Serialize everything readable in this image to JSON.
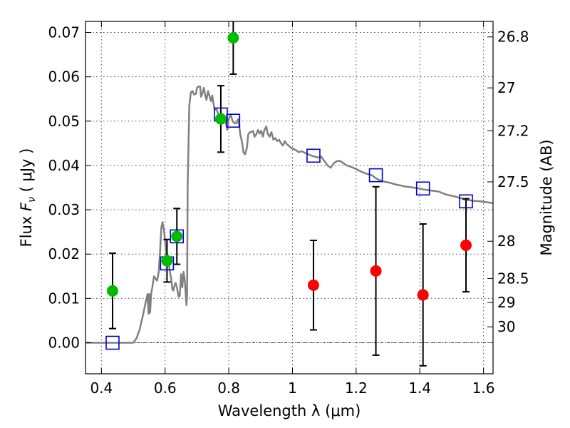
{
  "chart_data": {
    "type": "scatter",
    "xlabel": "Wavelength  λ (μm)",
    "ylabel": "Flux  F_ν  ( μJy )",
    "ylabel_parts": {
      "pre": "Flux  ",
      "var": "F",
      "sub": "ν",
      "post": "  ( μJy )"
    },
    "y2label": "Magnitude (AB)",
    "xlim": [
      0.35,
      1.63
    ],
    "ylim": [
      -0.007,
      0.0725
    ],
    "grid": true,
    "x_ticks": [
      {
        "value": 0.4,
        "label": "0.4"
      },
      {
        "value": 0.6,
        "label": "0.6"
      },
      {
        "value": 0.8,
        "label": "0.8"
      },
      {
        "value": 1.0,
        "label": "1"
      },
      {
        "value": 1.2,
        "label": "1.2"
      },
      {
        "value": 1.4,
        "label": "1.4"
      },
      {
        "value": 1.6,
        "label": "1.6"
      }
    ],
    "y_ticks": [
      {
        "value": 0.0,
        "label": "0.00"
      },
      {
        "value": 0.01,
        "label": "0.01"
      },
      {
        "value": 0.02,
        "label": "0.02"
      },
      {
        "value": 0.03,
        "label": "0.03"
      },
      {
        "value": 0.04,
        "label": "0.04"
      },
      {
        "value": 0.05,
        "label": "0.05"
      },
      {
        "value": 0.06,
        "label": "0.06"
      },
      {
        "value": 0.07,
        "label": "0.07"
      }
    ],
    "y2_ticks": [
      {
        "flux": 0.069,
        "label": "26.8"
      },
      {
        "flux": 0.0575,
        "label": "27"
      },
      {
        "flux": 0.0478,
        "label": "27.2"
      },
      {
        "flux": 0.0363,
        "label": "27.5"
      },
      {
        "flux": 0.0229,
        "label": "28"
      },
      {
        "flux": 0.0145,
        "label": "28.5"
      },
      {
        "flux": 0.0091,
        "label": "29"
      },
      {
        "flux": 0.0036,
        "label": "30"
      }
    ],
    "series": [
      {
        "kind": "model_spectrum",
        "color": "#808080",
        "points": [
          [
            0.35,
            0.0
          ],
          [
            0.5,
            0.0
          ],
          [
            0.51,
            0.001
          ],
          [
            0.52,
            0.003
          ],
          [
            0.53,
            0.006
          ],
          [
            0.54,
            0.0095
          ],
          [
            0.545,
            0.011
          ],
          [
            0.548,
            0.0065
          ],
          [
            0.55,
            0.011
          ],
          [
            0.553,
            0.0068
          ],
          [
            0.556,
            0.011
          ],
          [
            0.56,
            0.0125
          ],
          [
            0.565,
            0.015
          ],
          [
            0.57,
            0.0145
          ],
          [
            0.575,
            0.014
          ],
          [
            0.58,
            0.016
          ],
          [
            0.584,
            0.0205
          ],
          [
            0.588,
            0.026
          ],
          [
            0.592,
            0.0272
          ],
          [
            0.597,
            0.025
          ],
          [
            0.6,
            0.023
          ],
          [
            0.605,
            0.019
          ],
          [
            0.61,
            0.0195
          ],
          [
            0.614,
            0.0165
          ],
          [
            0.619,
            0.0145
          ],
          [
            0.623,
            0.012
          ],
          [
            0.626,
            0.0118
          ],
          [
            0.629,
            0.0128
          ],
          [
            0.633,
            0.0135
          ],
          [
            0.637,
            0.0125
          ],
          [
            0.642,
            0.0105
          ],
          [
            0.646,
            0.0105
          ],
          [
            0.65,
            0.0155
          ],
          [
            0.654,
            0.0125
          ],
          [
            0.658,
            0.016
          ],
          [
            0.662,
            0.014
          ],
          [
            0.667,
            0.0085
          ],
          [
            0.669,
            0.011
          ],
          [
            0.671,
            0.0355
          ],
          [
            0.676,
            0.0535
          ],
          [
            0.681,
            0.0565
          ],
          [
            0.686,
            0.0568
          ],
          [
            0.691,
            0.056
          ],
          [
            0.697,
            0.0562
          ],
          [
            0.7,
            0.0575
          ],
          [
            0.705,
            0.0578
          ],
          [
            0.71,
            0.0578
          ],
          [
            0.713,
            0.0555
          ],
          [
            0.718,
            0.0565
          ],
          [
            0.722,
            0.0575
          ],
          [
            0.726,
            0.0558
          ],
          [
            0.73,
            0.0548
          ],
          [
            0.735,
            0.0568
          ],
          [
            0.74,
            0.0555
          ],
          [
            0.744,
            0.0545
          ],
          [
            0.748,
            0.0558
          ],
          [
            0.752,
            0.054
          ],
          [
            0.756,
            0.0525
          ],
          [
            0.761,
            0.0528
          ],
          [
            0.766,
            0.0518
          ],
          [
            0.771,
            0.0512
          ],
          [
            0.777,
            0.051
          ],
          [
            0.782,
            0.0515
          ],
          [
            0.786,
            0.0505
          ],
          [
            0.79,
            0.05
          ],
          [
            0.795,
            0.048
          ],
          [
            0.8,
            0.0505
          ],
          [
            0.806,
            0.0515
          ],
          [
            0.812,
            0.05
          ],
          [
            0.818,
            0.0495
          ],
          [
            0.824,
            0.0495
          ],
          [
            0.83,
            0.0505
          ],
          [
            0.836,
            0.047
          ],
          [
            0.841,
            0.0455
          ],
          [
            0.846,
            0.043
          ],
          [
            0.851,
            0.0425
          ],
          [
            0.857,
            0.044
          ],
          [
            0.861,
            0.047
          ],
          [
            0.866,
            0.0475
          ],
          [
            0.871,
            0.0475
          ],
          [
            0.876,
            0.0478
          ],
          [
            0.881,
            0.0465
          ],
          [
            0.886,
            0.047
          ],
          [
            0.892,
            0.048
          ],
          [
            0.897,
            0.0472
          ],
          [
            0.902,
            0.0478
          ],
          [
            0.907,
            0.0465
          ],
          [
            0.912,
            0.048
          ],
          [
            0.918,
            0.0488
          ],
          [
            0.922,
            0.0472
          ],
          [
            0.928,
            0.0465
          ],
          [
            0.934,
            0.0475
          ],
          [
            0.94,
            0.0458
          ],
          [
            0.946,
            0.0462
          ],
          [
            0.952,
            0.0455
          ],
          [
            0.958,
            0.0458
          ],
          [
            0.964,
            0.045
          ],
          [
            0.97,
            0.0445
          ],
          [
            0.976,
            0.0455
          ],
          [
            0.982,
            0.0448
          ],
          [
            0.988,
            0.0445
          ],
          [
            0.995,
            0.044
          ],
          [
            1.0,
            0.0438
          ],
          [
            1.01,
            0.0435
          ],
          [
            1.02,
            0.043
          ],
          [
            1.03,
            0.0432
          ],
          [
            1.04,
            0.0428
          ],
          [
            1.05,
            0.0425
          ],
          [
            1.06,
            0.0422
          ],
          [
            1.07,
            0.042
          ],
          [
            1.08,
            0.0418
          ],
          [
            1.09,
            0.042
          ],
          [
            1.1,
            0.041
          ],
          [
            1.11,
            0.04
          ],
          [
            1.12,
            0.0395
          ],
          [
            1.13,
            0.0405
          ],
          [
            1.14,
            0.041
          ],
          [
            1.15,
            0.041
          ],
          [
            1.16,
            0.0405
          ],
          [
            1.17,
            0.04
          ],
          [
            1.18,
            0.0398
          ],
          [
            1.19,
            0.0395
          ],
          [
            1.2,
            0.0392
          ],
          [
            1.21,
            0.0388
          ],
          [
            1.22,
            0.0385
          ],
          [
            1.23,
            0.0382
          ],
          [
            1.24,
            0.038
          ],
          [
            1.25,
            0.0378
          ],
          [
            1.26,
            0.0372
          ],
          [
            1.27,
            0.0368
          ],
          [
            1.28,
            0.0365
          ],
          [
            1.29,
            0.0363
          ],
          [
            1.3,
            0.0362
          ],
          [
            1.31,
            0.036
          ],
          [
            1.32,
            0.0358
          ],
          [
            1.33,
            0.0356
          ],
          [
            1.34,
            0.0355
          ],
          [
            1.35,
            0.0353
          ],
          [
            1.36,
            0.0352
          ],
          [
            1.37,
            0.0351
          ],
          [
            1.38,
            0.035
          ],
          [
            1.39,
            0.0349
          ],
          [
            1.4,
            0.0348
          ],
          [
            1.41,
            0.0346
          ],
          [
            1.42,
            0.0345
          ],
          [
            1.43,
            0.0344
          ],
          [
            1.44,
            0.0343
          ],
          [
            1.45,
            0.0342
          ],
          [
            1.46,
            0.0341
          ],
          [
            1.47,
            0.0338
          ],
          [
            1.48,
            0.0335
          ],
          [
            1.49,
            0.0333
          ],
          [
            1.5,
            0.0332
          ],
          [
            1.51,
            0.033
          ],
          [
            1.52,
            0.0328
          ],
          [
            1.53,
            0.0326
          ],
          [
            1.54,
            0.0323
          ],
          [
            1.55,
            0.0322
          ],
          [
            1.56,
            0.0321
          ],
          [
            1.57,
            0.032
          ],
          [
            1.58,
            0.032
          ],
          [
            1.59,
            0.0319
          ],
          [
            1.6,
            0.0318
          ],
          [
            1.61,
            0.0317
          ],
          [
            1.62,
            0.0316
          ],
          [
            1.63,
            0.0315
          ]
        ]
      },
      {
        "kind": "model_photometry",
        "marker": "square",
        "color": "#0000cc",
        "points": [
          [
            0.435,
            0.0
          ],
          [
            0.606,
            0.0179
          ],
          [
            0.637,
            0.024
          ],
          [
            0.775,
            0.0515
          ],
          [
            0.814,
            0.0501
          ],
          [
            1.066,
            0.0422
          ],
          [
            1.262,
            0.0378
          ],
          [
            1.41,
            0.0348
          ],
          [
            1.545,
            0.0319
          ]
        ]
      },
      {
        "kind": "observed_green",
        "marker": "circle",
        "color": "#00bb00",
        "points": [
          {
            "x": 0.435,
            "y": 0.0117,
            "err": 0.0085
          },
          {
            "x": 0.606,
            "y": 0.0185,
            "err": 0.0048
          },
          {
            "x": 0.637,
            "y": 0.024,
            "err": 0.0063
          },
          {
            "x": 0.775,
            "y": 0.0505,
            "err": 0.0075
          },
          {
            "x": 0.814,
            "y": 0.0688,
            "err": 0.0082
          }
        ]
      },
      {
        "kind": "observed_red",
        "marker": "circle",
        "color": "#ff0000",
        "points": [
          {
            "x": 1.066,
            "y": 0.013,
            "err": 0.0101
          },
          {
            "x": 1.262,
            "y": 0.0162,
            "err": 0.019
          },
          {
            "x": 1.41,
            "y": 0.0108,
            "err": 0.016
          },
          {
            "x": 1.545,
            "y": 0.022,
            "err": 0.0105
          }
        ]
      }
    ]
  }
}
